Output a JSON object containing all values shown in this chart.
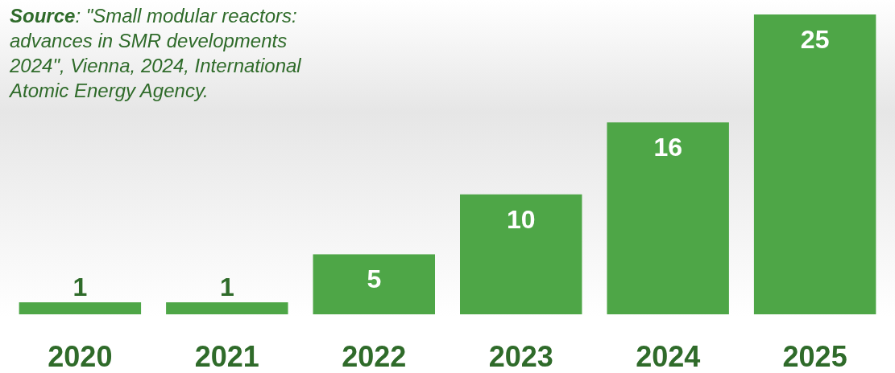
{
  "chart_data": {
    "type": "bar",
    "categories": [
      "2020",
      "2021",
      "2022",
      "2023",
      "2024",
      "2025"
    ],
    "values": [
      1,
      1,
      5,
      10,
      16,
      25
    ],
    "color": "#4ea647",
    "data_labels": true,
    "annotations": [
      "Source: \"Small modular reactors: advances in SMR developments 2024\", Vienna, 2024, International Atomic Energy Agency."
    ]
  }
}
